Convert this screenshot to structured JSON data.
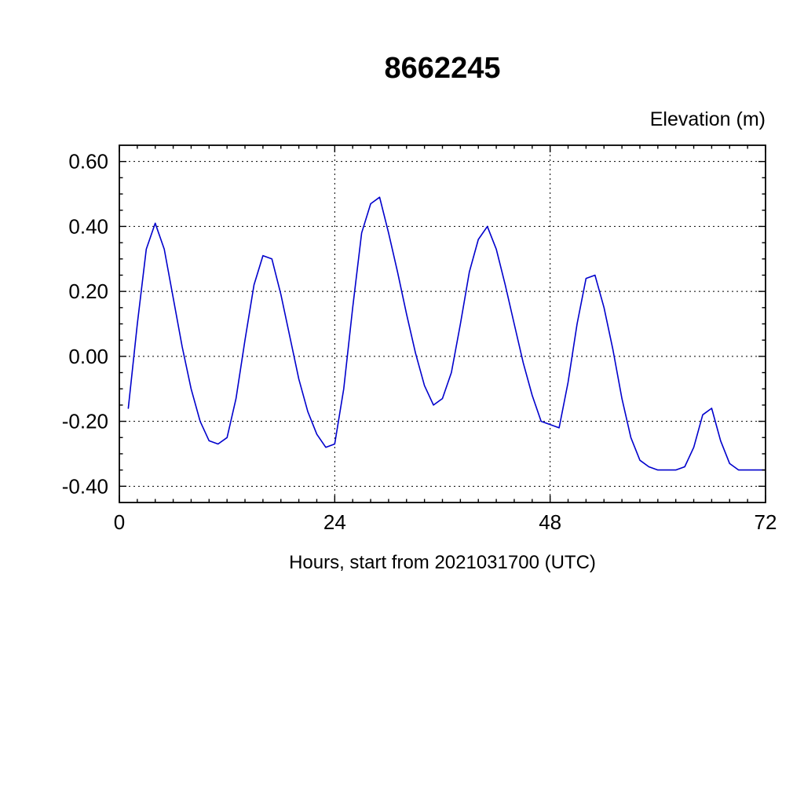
{
  "page": {
    "background": "#ffffff"
  },
  "chart_data": {
    "type": "line",
    "title": "8662245",
    "ylabel": "Elevation (m)",
    "xlabel": "Hours, start from 2021031700 (UTC)",
    "xlim": [
      0,
      72
    ],
    "ylim": [
      -0.45,
      0.65
    ],
    "xticks": [
      0,
      24,
      48,
      72
    ],
    "xtick_labels": [
      "0",
      "24",
      "48",
      "72"
    ],
    "yticks": [
      -0.4,
      -0.2,
      0.0,
      0.2,
      0.4,
      0.6
    ],
    "ytick_labels": [
      "-0.40",
      "-0.20",
      "0.00",
      "0.20",
      "0.40",
      "0.60"
    ],
    "x_gridlines": [
      24,
      48
    ],
    "grid": "dotted",
    "x_minor_step": 2,
    "y_minor_step": 0.05,
    "line_color": "#0000cc",
    "frame_color": "#000000",
    "legend": "none",
    "series": [
      {
        "name": "elevation",
        "x": [
          1,
          2,
          3,
          4,
          5,
          6,
          7,
          8,
          9,
          10,
          11,
          12,
          13,
          14,
          15,
          16,
          17,
          18,
          19,
          20,
          21,
          22,
          23,
          24,
          25,
          26,
          27,
          28,
          29,
          30,
          31,
          32,
          33,
          34,
          35,
          36,
          37,
          38,
          39,
          40,
          41,
          42,
          43,
          44,
          45,
          46,
          47,
          48,
          49,
          50,
          51,
          52,
          53,
          54,
          55,
          56,
          57,
          58,
          59,
          60,
          61,
          62,
          63,
          64,
          65,
          66,
          67,
          68,
          69,
          70,
          71,
          72
        ],
        "y": [
          -0.16,
          0.1,
          0.33,
          0.41,
          0.33,
          0.18,
          0.03,
          -0.1,
          -0.2,
          -0.26,
          -0.27,
          -0.25,
          -0.13,
          0.05,
          0.22,
          0.31,
          0.3,
          0.19,
          0.06,
          -0.07,
          -0.17,
          -0.24,
          -0.28,
          -0.27,
          -0.1,
          0.15,
          0.38,
          0.47,
          0.49,
          0.38,
          0.26,
          0.13,
          0.01,
          -0.09,
          -0.15,
          -0.13,
          -0.05,
          0.1,
          0.26,
          0.36,
          0.4,
          0.33,
          0.22,
          0.1,
          -0.02,
          -0.12,
          -0.2,
          -0.21,
          -0.22,
          -0.08,
          0.1,
          0.24,
          0.25,
          0.15,
          0.02,
          -0.13,
          -0.25,
          -0.32,
          -0.34,
          -0.35,
          -0.35,
          -0.35,
          -0.34,
          -0.28,
          -0.18,
          -0.16,
          -0.26,
          -0.33,
          -0.35,
          -0.35,
          -0.35,
          -0.35
        ]
      }
    ]
  }
}
